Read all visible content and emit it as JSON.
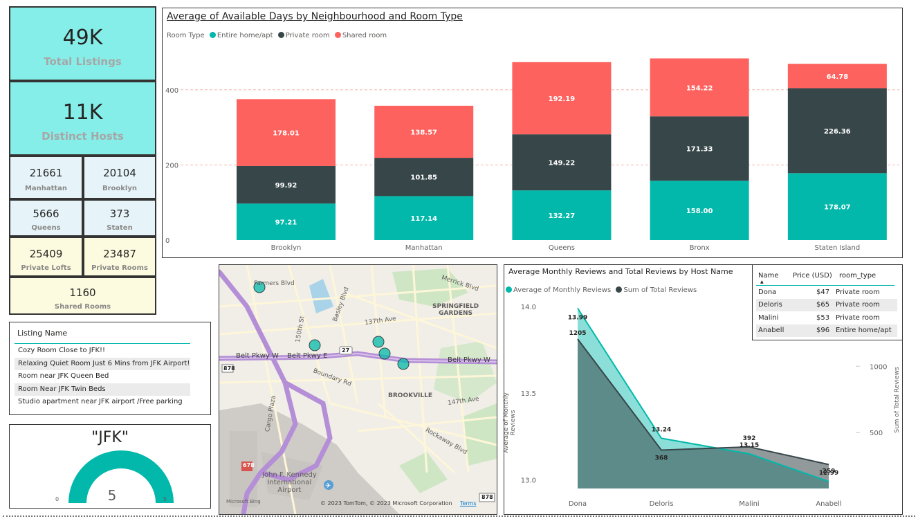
{
  "kpis": {
    "total_listings": {
      "value": "49K",
      "label": "Total Listings"
    },
    "distinct_hosts": {
      "value": "11K",
      "label": "Distinct Hosts"
    },
    "manhattan": {
      "value": "21661",
      "label": "Manhattan"
    },
    "brooklyn": {
      "value": "20104",
      "label": "Brooklyn"
    },
    "queens": {
      "value": "5666",
      "label": "Queens"
    },
    "staten": {
      "value": "373",
      "label": "Staten"
    },
    "private_lofts": {
      "value": "25409",
      "label": "Private Lofts"
    },
    "private_rooms": {
      "value": "23487",
      "label": "Private Rooms"
    },
    "shared_rooms": {
      "value": "1160",
      "label": "Shared Rooms"
    }
  },
  "listing_slicer": {
    "header": "Listing Name",
    "items": [
      "Cozy Room Close to JFK!!",
      "Relaxing Quiet Room Just 6 Mins from JFK Airport!",
      "Room near JFK Queen Bed",
      "Room Near JFK Twin Beds",
      "Studio apartment near JFK airport /Free parking"
    ]
  },
  "gauge": {
    "title": "\"JFK\"",
    "value": "5",
    "min": "0",
    "max": "5",
    "fill_fraction": 1.0,
    "color": "#01B8AA"
  },
  "bar_chart": {
    "title": "Average of Available Days by Neighbourhood and Room Type",
    "legend_title": "Room Type",
    "legend": [
      "Entire home/apt",
      "Private room",
      "Shared room"
    ]
  },
  "map": {
    "labels": {
      "merrick": "Merrick Blvd",
      "springfield": "SPRINGFIELD\nGARDENS",
      "ave137": "137th Ave",
      "belt_w1": "Belt Pkwy W",
      "belt_w2": "Belt Pkwy E",
      "belt_w3": "Belt Pkwy W",
      "route27": "27",
      "brookville": "BROOKVILLE",
      "ave147": "147th Ave",
      "rockaway": "Rockaway Blvd",
      "boundary": "Boundary Rd",
      "cargo": "Cargo Plaza",
      "jfk_airport": "John F. Kennedy\nInternational\nAirport",
      "route678": "678",
      "route878a": "878",
      "route878b": "878",
      "street150": "150th St",
      "basley": "Basley Blvd",
      "farmers": "Farmers Blvd"
    },
    "attribution": "© 2023 TomTom, © 2023 Microsoft Corporation",
    "terms": "Terms",
    "brand": "Microsoft Bing"
  },
  "area_chart": {
    "title": "Average Monthly Reviews and Total Reviews by Host Name",
    "legend": [
      "Average of Monthly Reviews",
      "Sum of Total Reviews"
    ],
    "y_left_label": "Average of Monthly Reviews",
    "y_right_label": "Sum of Total Reviews"
  },
  "host_table": {
    "columns": [
      "Name",
      "Price (USD)",
      "room_type"
    ],
    "rows": [
      [
        "Dona",
        "$47",
        "Private room"
      ],
      [
        "Deloris",
        "$65",
        "Private room"
      ],
      [
        "Malini",
        "$53",
        "Private room"
      ],
      [
        "Anabell",
        "$96",
        "Entire home/apt"
      ]
    ]
  },
  "chart_data": [
    {
      "type": "bar",
      "stacked": true,
      "title": "Average of Available Days by Neighbourhood and Room Type",
      "categories": [
        "Brooklyn",
        "Manhattan",
        "Queens",
        "Bronx",
        "Staten Island"
      ],
      "series": [
        {
          "name": "Entire home/apt",
          "color": "#01B8AA",
          "values": [
            97.21,
            117.14,
            132.27,
            158.0,
            178.07
          ]
        },
        {
          "name": "Private room",
          "color": "#374649",
          "values": [
            99.92,
            101.85,
            149.22,
            171.33,
            226.36
          ]
        },
        {
          "name": "Shared room",
          "color": "#FD625E",
          "values": [
            178.01,
            138.57,
            192.19,
            154.22,
            64.78
          ]
        }
      ],
      "y_ticks": [
        0,
        200,
        400
      ],
      "ylim": [
        0,
        500
      ],
      "gridlines": true,
      "legend_position": "top-left"
    },
    {
      "type": "area",
      "title": "Average Monthly Reviews and Total Reviews by Host Name",
      "categories": [
        "Dona",
        "Deloris",
        "Malini",
        "Anabell"
      ],
      "series": [
        {
          "name": "Average of Monthly Reviews",
          "color": "#01B8AA",
          "axis": "left",
          "values": [
            13.99,
            13.24,
            13.15,
            12.99
          ]
        },
        {
          "name": "Sum of Total Reviews",
          "color": "#374649",
          "axis": "right",
          "values": [
            1205,
            368,
            392,
            259
          ]
        }
      ],
      "y_left_ticks": [
        "13.0",
        "13.5",
        "14.0"
      ],
      "y_left_range": [
        12.95,
        14.0
      ],
      "y_right_ticks": [
        "500",
        "1000"
      ],
      "y_right_range": [
        0,
        1450
      ],
      "ylabel_left": "Average of Monthly Reviews",
      "ylabel_right": "Sum of Total Reviews",
      "legend_position": "top-left"
    }
  ]
}
